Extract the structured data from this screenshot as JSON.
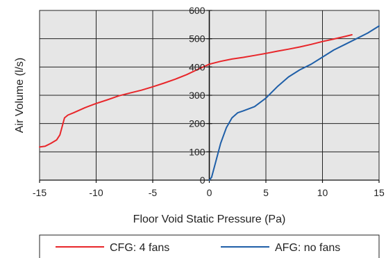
{
  "chart_data": {
    "type": "line",
    "xlabel": "Floor Void Static Pressure (Pa)",
    "ylabel": "Air Volume (l/s)",
    "xlim": [
      -15,
      15
    ],
    "ylim": [
      0,
      600
    ],
    "x_ticks": [
      -15,
      -10,
      -5,
      0,
      5,
      10,
      15
    ],
    "y_ticks": [
      0,
      100,
      200,
      300,
      400,
      500,
      600
    ],
    "grid": true,
    "legend_position": "bottom",
    "plot_background": "#e6e6e6",
    "series": [
      {
        "name": "CFG: 4 fans",
        "color": "#e8262a",
        "points": [
          [
            -15,
            117
          ],
          [
            -14.5,
            120
          ],
          [
            -14,
            130
          ],
          [
            -13.5,
            142
          ],
          [
            -13.2,
            160
          ],
          [
            -13,
            190
          ],
          [
            -12.8,
            220
          ],
          [
            -12.5,
            230
          ],
          [
            -12,
            238
          ],
          [
            -11,
            256
          ],
          [
            -10,
            271
          ],
          [
            -9,
            284
          ],
          [
            -8,
            298
          ],
          [
            -7,
            308
          ],
          [
            -6,
            318
          ],
          [
            -5,
            330
          ],
          [
            -4,
            343
          ],
          [
            -3,
            357
          ],
          [
            -2,
            373
          ],
          [
            -1,
            392
          ],
          [
            0,
            410
          ],
          [
            1,
            420
          ],
          [
            2,
            428
          ],
          [
            3,
            434
          ],
          [
            4,
            441
          ],
          [
            5,
            448
          ],
          [
            6,
            456
          ],
          [
            7,
            463
          ],
          [
            8,
            471
          ],
          [
            9,
            480
          ],
          [
            10,
            490
          ],
          [
            11,
            499
          ],
          [
            12,
            508
          ],
          [
            12.6,
            514
          ]
        ]
      },
      {
        "name": "AFG: no fans",
        "color": "#1f5fa8",
        "points": [
          [
            0,
            0
          ],
          [
            0.2,
            10
          ],
          [
            0.5,
            55
          ],
          [
            1,
            130
          ],
          [
            1.5,
            185
          ],
          [
            2,
            220
          ],
          [
            2.5,
            238
          ],
          [
            3,
            245
          ],
          [
            4,
            260
          ],
          [
            5,
            290
          ],
          [
            6,
            330
          ],
          [
            7,
            365
          ],
          [
            8,
            390
          ],
          [
            9,
            410
          ],
          [
            10,
            435
          ],
          [
            11,
            460
          ],
          [
            12,
            480
          ],
          [
            13,
            500
          ],
          [
            14,
            520
          ],
          [
            15,
            545
          ]
        ]
      }
    ]
  }
}
